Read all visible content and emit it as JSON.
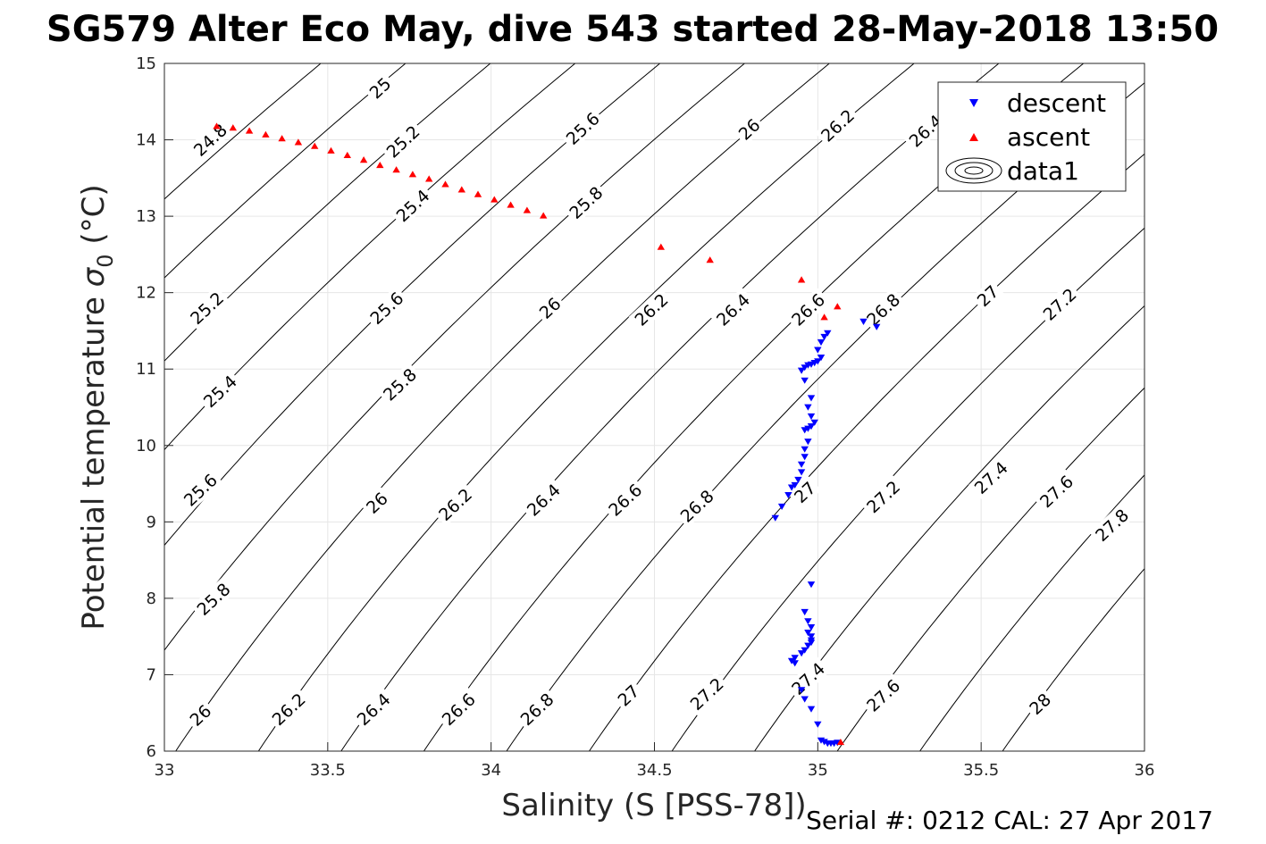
{
  "chart_data": {
    "type": "scatter",
    "title": "SG579 Alter Eco May, dive 543 started 28-May-2018 13:50",
    "xlabel": "Salinity (S [PSS-78])",
    "ylabel_main": "Potential temperature ",
    "ylabel_sigma": "σ",
    "ylabel_sub": "0",
    "ylabel_unit": " (°C)",
    "xlim": [
      33,
      36
    ],
    "ylim": [
      6,
      15
    ],
    "xticks": [
      33,
      33.5,
      34,
      34.5,
      35,
      35.5,
      36
    ],
    "xtick_labels": [
      "33",
      "33.5",
      "34",
      "34.5",
      "35",
      "35.5",
      "36"
    ],
    "yticks": [
      6,
      7,
      8,
      9,
      10,
      11,
      12,
      13,
      14,
      15
    ],
    "ytick_labels": [
      "6",
      "7",
      "8",
      "9",
      "10",
      "11",
      "12",
      "13",
      "14",
      "15"
    ],
    "grid": true,
    "legend_position": "top-right",
    "legend": {
      "descent": "descent",
      "ascent": "ascent",
      "contours": "data1"
    },
    "footer": "Serial #: 0212  CAL: 27 Apr 2017",
    "contours": {
      "levels": [
        24.8,
        25,
        25.2,
        25.4,
        25.6,
        25.8,
        26,
        26.2,
        26.4,
        26.6,
        26.8,
        27,
        27.2,
        27.4,
        27.6,
        27.8,
        28
      ],
      "labels": [
        {
          "text": "24.8",
          "x": 33.14,
          "y": 14.0
        },
        {
          "text": "25",
          "x": 33.66,
          "y": 14.68
        },
        {
          "text": "25.2",
          "x": 33.73,
          "y": 13.98
        },
        {
          "text": "25.4",
          "x": 33.76,
          "y": 13.14
        },
        {
          "text": "25.6",
          "x": 34.28,
          "y": 14.15
        },
        {
          "text": "25.8",
          "x": 34.29,
          "y": 13.18
        },
        {
          "text": "26",
          "x": 34.79,
          "y": 14.14
        },
        {
          "text": "26.2",
          "x": 35.06,
          "y": 14.19
        },
        {
          "text": "26.4",
          "x": 35.33,
          "y": 14.12
        },
        {
          "text": "25.2",
          "x": 33.13,
          "y": 11.8
        },
        {
          "text": "25.6",
          "x": 33.68,
          "y": 11.8
        },
        {
          "text": "26",
          "x": 34.18,
          "y": 11.8
        },
        {
          "text": "26.2",
          "x": 34.49,
          "y": 11.78
        },
        {
          "text": "26.4",
          "x": 34.74,
          "y": 11.78
        },
        {
          "text": "26.6",
          "x": 34.97,
          "y": 11.78
        },
        {
          "text": "26.8",
          "x": 35.2,
          "y": 11.78
        },
        {
          "text": "27",
          "x": 35.52,
          "y": 11.96
        },
        {
          "text": "27.2",
          "x": 35.74,
          "y": 11.85
        },
        {
          "text": "25.4",
          "x": 33.17,
          "y": 10.71
        },
        {
          "text": "25.8",
          "x": 33.72,
          "y": 10.8
        },
        {
          "text": "25.6",
          "x": 33.11,
          "y": 9.42
        },
        {
          "text": "26",
          "x": 33.65,
          "y": 9.25
        },
        {
          "text": "26.2",
          "x": 33.89,
          "y": 9.23
        },
        {
          "text": "26.4",
          "x": 34.16,
          "y": 9.29
        },
        {
          "text": "26.6",
          "x": 34.41,
          "y": 9.29
        },
        {
          "text": "26.8",
          "x": 34.63,
          "y": 9.21
        },
        {
          "text": "27",
          "x": 34.96,
          "y": 9.39
        },
        {
          "text": "27.2",
          "x": 35.2,
          "y": 9.33
        },
        {
          "text": "27.4",
          "x": 35.53,
          "y": 9.58
        },
        {
          "text": "27.6",
          "x": 35.73,
          "y": 9.4
        },
        {
          "text": "27.8",
          "x": 35.9,
          "y": 8.96
        },
        {
          "text": "25.8",
          "x": 33.15,
          "y": 7.99
        },
        {
          "text": "26",
          "x": 33.11,
          "y": 6.47
        },
        {
          "text": "26.2",
          "x": 33.38,
          "y": 6.55
        },
        {
          "text": "26.4",
          "x": 33.64,
          "y": 6.55
        },
        {
          "text": "26.6",
          "x": 33.9,
          "y": 6.55
        },
        {
          "text": "26.8",
          "x": 34.14,
          "y": 6.55
        },
        {
          "text": "27",
          "x": 34.42,
          "y": 6.73
        },
        {
          "text": "27.2",
          "x": 34.66,
          "y": 6.75
        },
        {
          "text": "27.4",
          "x": 34.97,
          "y": 6.95
        },
        {
          "text": "27.6",
          "x": 35.2,
          "y": 6.73
        },
        {
          "text": "28",
          "x": 35.68,
          "y": 6.62
        }
      ]
    },
    "series": [
      {
        "name": "descent",
        "color": "#0000ff",
        "marker": "triangle-down",
        "points": [
          [
            35.18,
            11.55
          ],
          [
            35.14,
            11.62
          ],
          [
            35.03,
            11.47
          ],
          [
            35.02,
            11.42
          ],
          [
            35.01,
            11.35
          ],
          [
            35.0,
            11.25
          ],
          [
            35.01,
            11.15
          ],
          [
            35.0,
            11.1
          ],
          [
            34.99,
            11.08
          ],
          [
            34.98,
            11.06
          ],
          [
            34.97,
            11.05
          ],
          [
            34.96,
            11.02
          ],
          [
            34.95,
            10.98
          ],
          [
            34.96,
            10.85
          ],
          [
            34.98,
            10.62
          ],
          [
            34.97,
            10.5
          ],
          [
            34.98,
            10.38
          ],
          [
            34.99,
            10.3
          ],
          [
            34.98,
            10.25
          ],
          [
            34.97,
            10.22
          ],
          [
            34.96,
            10.2
          ],
          [
            34.97,
            10.05
          ],
          [
            34.96,
            9.95
          ],
          [
            34.96,
            9.85
          ],
          [
            34.95,
            9.75
          ],
          [
            34.95,
            9.65
          ],
          [
            34.94,
            9.55
          ],
          [
            34.93,
            9.48
          ],
          [
            34.92,
            9.45
          ],
          [
            34.91,
            9.35
          ],
          [
            34.89,
            9.2
          ],
          [
            34.87,
            9.05
          ],
          [
            34.98,
            8.18
          ],
          [
            34.96,
            7.82
          ],
          [
            34.97,
            7.7
          ],
          [
            34.98,
            7.62
          ],
          [
            34.97,
            7.55
          ],
          [
            34.98,
            7.5
          ],
          [
            34.98,
            7.45
          ],
          [
            34.98,
            7.42
          ],
          [
            34.97,
            7.38
          ],
          [
            34.96,
            7.32
          ],
          [
            34.95,
            7.28
          ],
          [
            34.93,
            7.22
          ],
          [
            34.92,
            7.18
          ],
          [
            34.93,
            7.15
          ],
          [
            34.95,
            6.8
          ],
          [
            34.96,
            6.68
          ],
          [
            34.98,
            6.55
          ],
          [
            35.0,
            6.35
          ],
          [
            35.01,
            6.14
          ],
          [
            35.02,
            6.12
          ],
          [
            35.03,
            6.1
          ],
          [
            35.04,
            6.1
          ],
          [
            35.05,
            6.1
          ],
          [
            35.06,
            6.11
          ]
        ]
      },
      {
        "name": "ascent",
        "color": "#ff0000",
        "marker": "triangle-up",
        "points": [
          [
            34.52,
            12.6
          ],
          [
            34.67,
            12.43
          ],
          [
            34.95,
            12.17
          ],
          [
            35.06,
            11.82
          ],
          [
            35.02,
            11.68
          ],
          [
            35.07,
            6.12
          ],
          [
            33.16,
            14.18
          ],
          [
            33.21,
            14.16
          ],
          [
            33.26,
            14.12
          ],
          [
            33.31,
            14.07
          ],
          [
            33.36,
            14.02
          ],
          [
            33.41,
            13.97
          ],
          [
            33.46,
            13.92
          ],
          [
            33.51,
            13.86
          ],
          [
            33.56,
            13.8
          ],
          [
            33.61,
            13.74
          ],
          [
            33.66,
            13.67
          ],
          [
            33.71,
            13.61
          ],
          [
            33.76,
            13.55
          ],
          [
            33.81,
            13.49
          ],
          [
            33.86,
            13.42
          ],
          [
            33.91,
            13.35
          ],
          [
            33.96,
            13.29
          ],
          [
            34.01,
            13.22
          ],
          [
            34.06,
            13.15
          ],
          [
            34.11,
            13.08
          ],
          [
            34.16,
            13.01
          ]
        ]
      }
    ]
  }
}
